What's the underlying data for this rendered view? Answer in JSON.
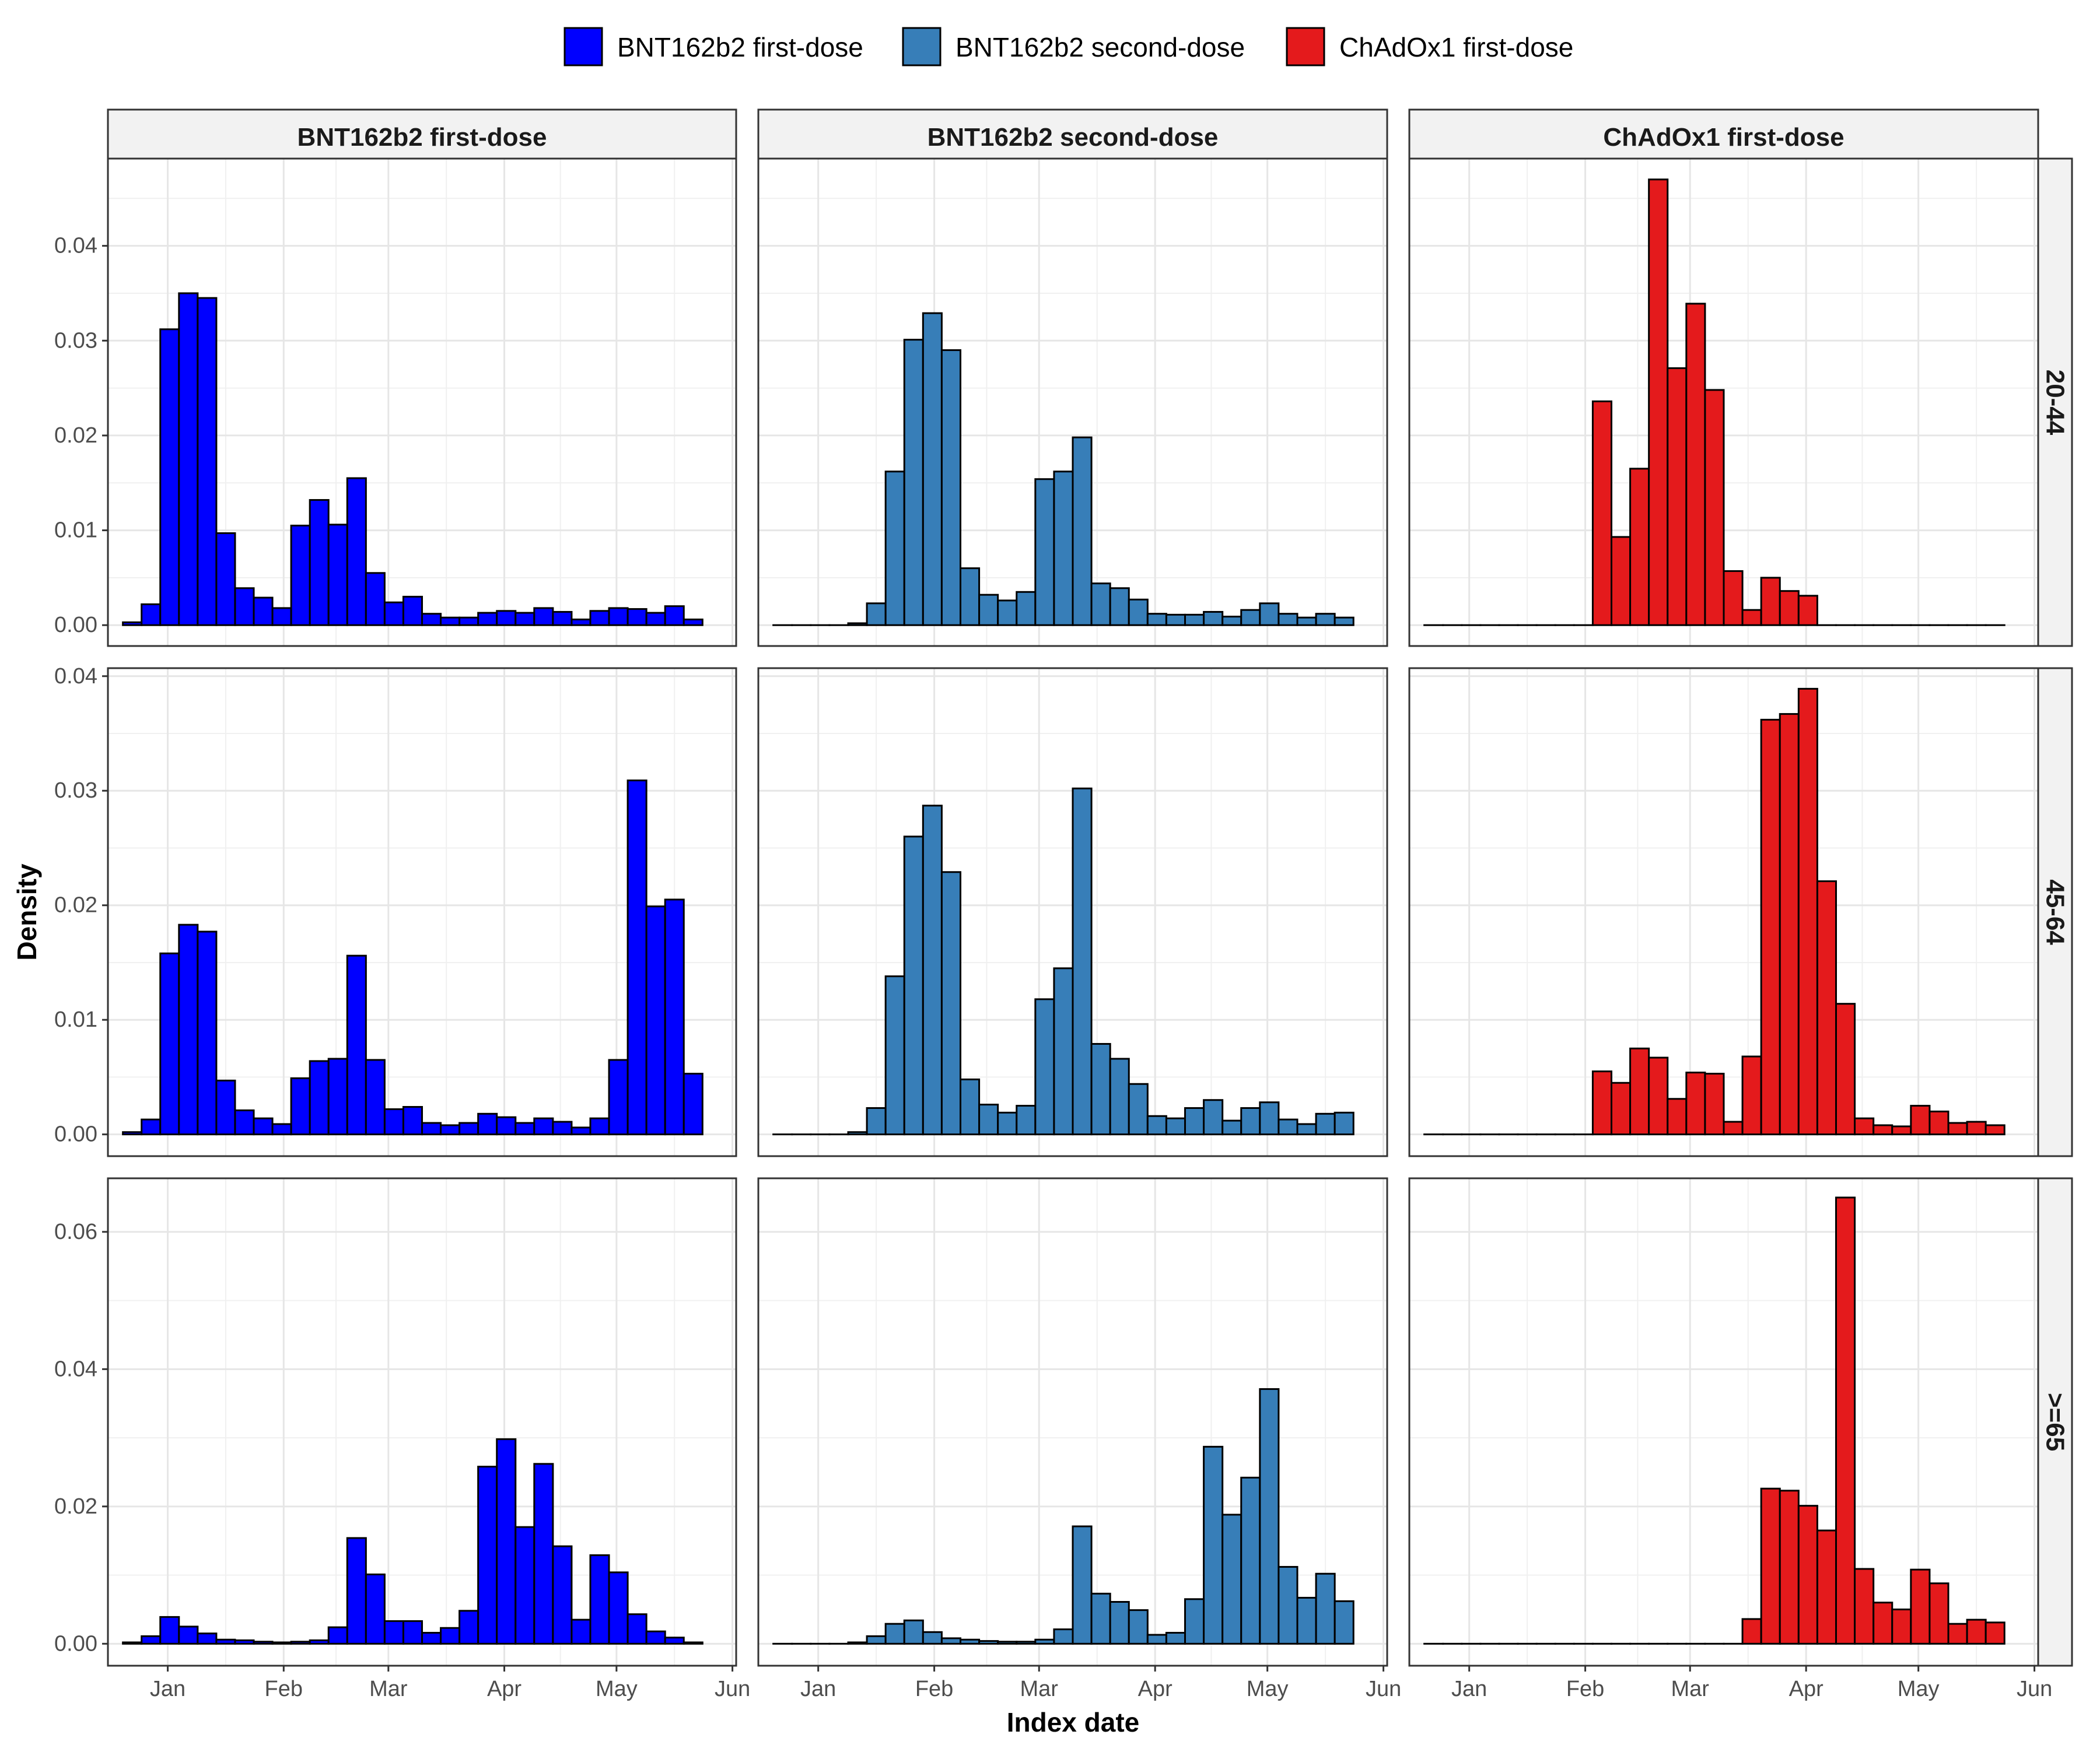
{
  "chart_data": {
    "type": "bar",
    "subtype": "faceted-histogram",
    "xlabel": "Index date",
    "ylabel": "Density",
    "legend": {
      "position": "top",
      "items": [
        {
          "label": "BNT162b2 first-dose",
          "color": "#0000ff"
        },
        {
          "label": "BNT162b2 second-dose",
          "color": "#377eb8"
        },
        {
          "label": "ChAdOx1 first-dose",
          "color": "#e41a1c"
        }
      ]
    },
    "x_ticks": [
      "Jan",
      "Feb",
      "Mar",
      "Apr",
      "May",
      "Jun"
    ],
    "x_tick_dates": [
      "2021-01-01",
      "2021-02-01",
      "2021-03-01",
      "2021-04-01",
      "2021-05-01",
      "2021-06-01"
    ],
    "xlim": [
      "2020-12-16",
      "2021-06-02"
    ],
    "bin_days": 5,
    "grid": true,
    "columns": [
      {
        "label": "BNT162b2 first-dose",
        "color": "#0000ff",
        "first_bin_start": "2020-12-20"
      },
      {
        "label": "BNT162b2 second-dose",
        "color": "#377eb8",
        "first_bin_start": "2020-12-20"
      },
      {
        "label": "ChAdOx1 first-dose",
        "color": "#e41a1c",
        "first_bin_start": "2020-12-20"
      }
    ],
    "rows": [
      {
        "label": "20-44",
        "ylim": [
          -0.0022,
          0.0492
        ],
        "y_ticks": [
          0.0,
          0.01,
          0.02,
          0.03,
          0.04
        ],
        "y_tick_labels": [
          "0.00",
          "0.01",
          "0.02",
          "0.03",
          "0.04"
        ],
        "series": [
          [
            0.0003,
            0.0022,
            0.0312,
            0.035,
            0.0345,
            0.0097,
            0.0039,
            0.0029,
            0.0018,
            0.0105,
            0.0132,
            0.0106,
            0.0155,
            0.0055,
            0.0024,
            0.003,
            0.0012,
            0.0008,
            0.0008,
            0.0013,
            0.0015,
            0.0013,
            0.0018,
            0.0014,
            0.0006,
            0.0015,
            0.0018,
            0.0017,
            0.0013,
            0.002,
            0.0006
          ],
          [
            0.0,
            0.0,
            0.0,
            0.0,
            0.0002,
            0.0023,
            0.0162,
            0.0301,
            0.0329,
            0.029,
            0.006,
            0.0032,
            0.0026,
            0.0035,
            0.0154,
            0.0162,
            0.0198,
            0.0044,
            0.0039,
            0.0027,
            0.0012,
            0.0011,
            0.0011,
            0.0014,
            0.0009,
            0.0016,
            0.0023,
            0.0012,
            0.0008,
            0.0012,
            0.0008
          ],
          [
            0.0,
            0.0,
            0.0,
            0.0,
            0.0,
            0.0,
            0.0,
            0.0,
            0.0,
            0.0236,
            0.0093,
            0.0165,
            0.047,
            0.0271,
            0.0339,
            0.0248,
            0.0057,
            0.0016,
            0.005,
            0.0036,
            0.0031,
            0.0,
            0.0,
            0.0,
            0.0,
            0.0,
            0.0,
            0.0,
            0.0,
            0.0,
            0.0
          ]
        ]
      },
      {
        "label": "45-64",
        "ylim": [
          -0.0019,
          0.0407
        ],
        "y_ticks": [
          0.0,
          0.01,
          0.02,
          0.03,
          0.04
        ],
        "y_tick_labels": [
          "0.00",
          "0.01",
          "0.02",
          "0.03",
          "0.04"
        ],
        "series": [
          [
            0.0002,
            0.0013,
            0.0158,
            0.0183,
            0.0177,
            0.0047,
            0.0021,
            0.0014,
            0.0009,
            0.0049,
            0.0064,
            0.0066,
            0.0156,
            0.0065,
            0.0022,
            0.0024,
            0.001,
            0.0008,
            0.001,
            0.0018,
            0.0015,
            0.001,
            0.0014,
            0.0011,
            0.0006,
            0.0014,
            0.0065,
            0.0309,
            0.0199,
            0.0205,
            0.0053
          ],
          [
            0.0,
            0.0,
            0.0,
            0.0,
            0.0002,
            0.0023,
            0.0138,
            0.026,
            0.0287,
            0.0229,
            0.0048,
            0.0026,
            0.0019,
            0.0025,
            0.0118,
            0.0145,
            0.0302,
            0.0079,
            0.0066,
            0.0044,
            0.0016,
            0.0014,
            0.0023,
            0.003,
            0.0012,
            0.0023,
            0.0028,
            0.0013,
            0.0009,
            0.0018,
            0.0019
          ],
          [
            0.0,
            0.0,
            0.0,
            0.0,
            0.0,
            0.0,
            0.0,
            0.0,
            0.0,
            0.0055,
            0.0045,
            0.0075,
            0.0067,
            0.0031,
            0.0054,
            0.0053,
            0.0011,
            0.0068,
            0.0362,
            0.0367,
            0.0389,
            0.0221,
            0.0114,
            0.0014,
            0.0008,
            0.0007,
            0.0025,
            0.002,
            0.001,
            0.0011,
            0.0008
          ]
        ]
      },
      {
        "label": ">=65",
        "ylim": [
          -0.0032,
          0.0678
        ],
        "y_ticks": [
          0.0,
          0.02,
          0.04,
          0.06
        ],
        "y_tick_labels": [
          "0.00",
          "0.02",
          "0.04",
          "0.06"
        ],
        "series": [
          [
            0.0002,
            0.0011,
            0.0039,
            0.0025,
            0.0015,
            0.0006,
            0.0005,
            0.0003,
            0.0002,
            0.0003,
            0.0005,
            0.0024,
            0.0154,
            0.0101,
            0.0033,
            0.0033,
            0.0016,
            0.0023,
            0.0048,
            0.0258,
            0.0298,
            0.017,
            0.0262,
            0.0142,
            0.0035,
            0.0129,
            0.0104,
            0.0043,
            0.0018,
            0.0009,
            0.0002
          ],
          [
            0.0,
            0.0,
            0.0,
            0.0,
            0.0002,
            0.0011,
            0.0029,
            0.0034,
            0.0017,
            0.0008,
            0.0006,
            0.0004,
            0.0003,
            0.0003,
            0.0006,
            0.0021,
            0.0171,
            0.0073,
            0.0061,
            0.0049,
            0.0013,
            0.0016,
            0.0065,
            0.0287,
            0.0188,
            0.0242,
            0.0371,
            0.0112,
            0.0067,
            0.0102,
            0.0062
          ],
          [
            0.0,
            0.0,
            0.0,
            0.0,
            0.0,
            0.0,
            0.0,
            0.0,
            0.0,
            0.0,
            0.0,
            0.0,
            0.0,
            0.0,
            0.0,
            0.0,
            0.0,
            0.0036,
            0.0226,
            0.0223,
            0.0201,
            0.0165,
            0.065,
            0.0109,
            0.006,
            0.005,
            0.0108,
            0.0088,
            0.0029,
            0.0035,
            0.0031
          ]
        ]
      }
    ]
  }
}
